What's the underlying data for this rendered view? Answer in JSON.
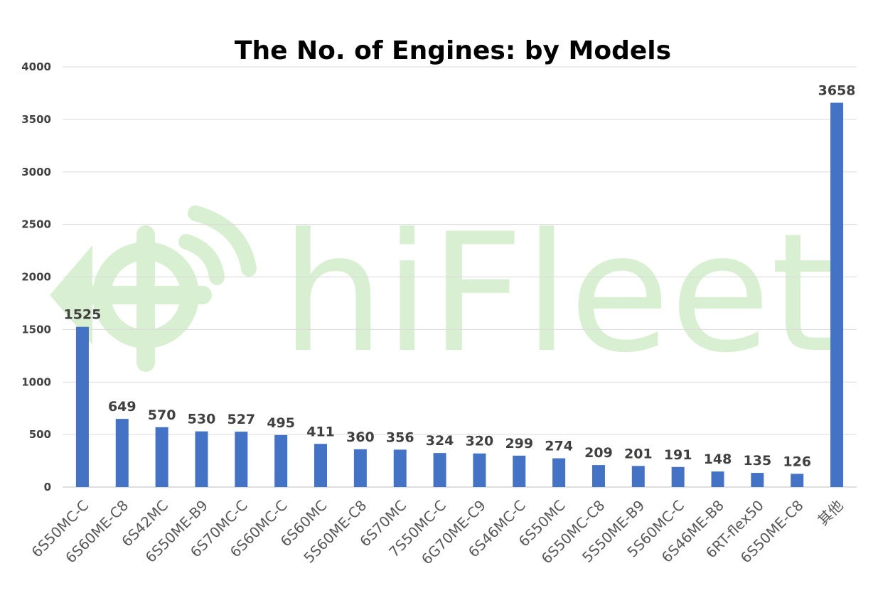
{
  "watermark": {
    "text": "hiFleet",
    "color": "#d9efd1"
  },
  "chart_data": {
    "type": "bar",
    "title": "The No. of Engines: by Models",
    "xlabel": "",
    "ylabel": "",
    "ylim": [
      0,
      4000
    ],
    "yticks": [
      0,
      500,
      1000,
      1500,
      2000,
      2500,
      3000,
      3500,
      4000
    ],
    "grid": true,
    "legend": "none",
    "bar_color": "#4472c4",
    "categories": [
      "6S50MC-C",
      "6S60ME-C8",
      "6S42MC",
      "6S50ME-B9",
      "6S70MC-C",
      "6S60MC-C",
      "6S60MC",
      "5S60ME-C8",
      "6S70MC",
      "7S50MC-C",
      "6G70ME-C9",
      "6S46MC-C",
      "6S50MC",
      "6S50MC-C8",
      "5S50ME-B9",
      "5S60MC-C",
      "6S46ME-B8",
      "6RT-flex50",
      "6S50ME-C8",
      "其他"
    ],
    "values": [
      1525,
      649,
      570,
      530,
      527,
      495,
      411,
      360,
      356,
      324,
      320,
      299,
      274,
      209,
      201,
      191,
      148,
      135,
      126,
      3658
    ]
  }
}
